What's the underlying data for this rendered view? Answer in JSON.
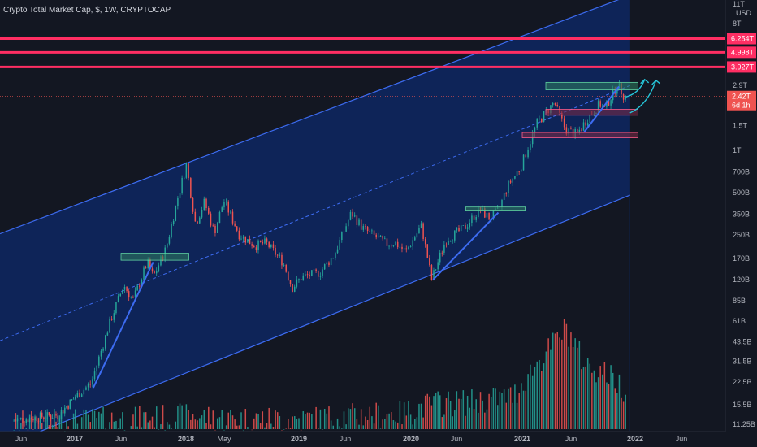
{
  "header": {
    "title": "Crypto Total Market Cap, $, 1W, CRYPTOCAP"
  },
  "currency": "USD",
  "colors": {
    "background": "#131722",
    "channel_fill": "#0d2a6b",
    "channel_line": "#3d6cf2",
    "resistance": "#ff2e63",
    "up": "#26a69a",
    "down": "#ef5350",
    "zone_green": "#2f7d5e",
    "zone_red": "#7d2a45",
    "arrow": "#26c6da"
  },
  "chart_data": {
    "type": "candlestick",
    "title": "Crypto Total Market Cap, $, 1W, CRYPTOCAP",
    "y_scale": "log",
    "y_unit": "USD",
    "y_ticks": [
      "11T",
      "8T",
      "2.9T",
      "1.5T",
      "1T",
      "700B",
      "500B",
      "350B",
      "250B",
      "170B",
      "120B",
      "85B",
      "61B",
      "43.5B",
      "31.5B",
      "22.5B",
      "15.5B",
      "11.25B"
    ],
    "y_tick_values": [
      11000,
      8000,
      2900,
      1500,
      1000,
      700,
      500,
      350,
      250,
      170,
      120,
      85,
      61,
      43.5,
      31.5,
      22.5,
      15.5,
      11.25
    ],
    "x_ticks": [
      "Jun",
      "2017",
      "Jun",
      "2018",
      "May",
      "2019",
      "Jun",
      "2020",
      "Jun",
      "2021",
      "Jun",
      "2022",
      "Jun"
    ],
    "x_tick_dates": [
      "2016-06-01",
      "2017-01-01",
      "2017-06-01",
      "2018-01-01",
      "2018-05-01",
      "2019-01-01",
      "2019-06-01",
      "2020-01-01",
      "2020-06-01",
      "2021-01-01",
      "2021-06-01",
      "2022-01-01",
      "2022-06-01"
    ],
    "resistance_levels": [
      {
        "label": "6.254T",
        "value": 6254
      },
      {
        "label": "4.998T",
        "value": 4998
      },
      {
        "label": "3.927T",
        "value": 3927
      }
    ],
    "last_price": {
      "label": "2.42T",
      "value": 2420,
      "countdown": "6d 1h"
    },
    "price_path": [
      [
        "2016-05-01",
        11.8
      ],
      [
        "2016-08-01",
        12.5
      ],
      [
        "2016-11-01",
        13
      ],
      [
        "2017-01-01",
        17
      ],
      [
        "2017-03-01",
        22
      ],
      [
        "2017-05-01",
        60
      ],
      [
        "2017-06-15",
        110
      ],
      [
        "2017-07-15",
        85
      ],
      [
        "2017-09-01",
        160
      ],
      [
        "2017-09-20",
        125
      ],
      [
        "2017-11-01",
        200
      ],
      [
        "2017-12-10",
        460
      ],
      [
        "2018-01-07",
        790
      ],
      [
        "2018-02-05",
        300
      ],
      [
        "2018-03-05",
        430
      ],
      [
        "2018-04-05",
        260
      ],
      [
        "2018-05-05",
        440
      ],
      [
        "2018-06-25",
        250
      ],
      [
        "2018-08-15",
        210
      ],
      [
        "2018-09-20",
        220
      ],
      [
        "2018-11-15",
        160
      ],
      [
        "2018-12-15",
        105
      ],
      [
        "2019-01-15",
        125
      ],
      [
        "2019-03-15",
        135
      ],
      [
        "2019-05-01",
        180
      ],
      [
        "2019-06-26",
        360
      ],
      [
        "2019-08-01",
        280
      ],
      [
        "2019-09-15",
        240
      ],
      [
        "2019-10-20",
        215
      ],
      [
        "2019-11-15",
        220
      ],
      [
        "2019-12-20",
        190
      ],
      [
        "2020-02-10",
        290
      ],
      [
        "2020-03-15",
        120
      ],
      [
        "2020-05-01",
        230
      ],
      [
        "2020-07-01",
        280
      ],
      [
        "2020-08-20",
        380
      ],
      [
        "2020-09-20",
        330
      ],
      [
        "2020-10-20",
        370
      ],
      [
        "2020-11-20",
        560
      ],
      [
        "2021-01-01",
        760
      ],
      [
        "2021-02-20",
        1550
      ],
      [
        "2021-04-15",
        2200
      ],
      [
        "2021-05-20",
        1400
      ],
      [
        "2021-06-25",
        1300
      ],
      [
        "2021-08-01",
        1700
      ],
      [
        "2021-09-10",
        2150
      ],
      [
        "2021-09-25",
        1950
      ],
      [
        "2021-11-08",
        2950
      ],
      [
        "2021-12-01",
        2420
      ]
    ],
    "volume_path": [
      [
        "2016-05-01",
        11.5
      ],
      [
        "2017-01-01",
        12
      ],
      [
        "2017-09-01",
        12.5
      ],
      [
        "2018-01-15",
        13
      ],
      [
        "2018-06-01",
        12.4
      ],
      [
        "2019-01-01",
        12.2
      ],
      [
        "2019-06-01",
        13
      ],
      [
        "2019-12-01",
        13.5
      ],
      [
        "2020-03-15",
        16
      ],
      [
        "2020-08-01",
        16.5
      ],
      [
        "2020-12-01",
        18
      ],
      [
        "2021-01-15",
        25
      ],
      [
        "2021-05-15",
        55
      ],
      [
        "2021-07-15",
        30
      ],
      [
        "2021-09-15",
        27
      ],
      [
        "2021-12-01",
        20
      ]
    ],
    "channel": {
      "upper": [
        [
          "2016-05-01",
          260
        ],
        [
          "2022-06-15",
          18000
        ]
      ],
      "lower": [
        [
          "2016-05-01",
          7.8
        ],
        [
          "2021-12-15",
          480
        ]
      ],
      "mid": [
        [
          "2016-05-01",
          45
        ],
        [
          "2021-12-15",
          2900
        ]
      ]
    },
    "zones": [
      {
        "kind": "green",
        "x": [
          "2017-06-01",
          "2018-01-10"
        ],
        "y": [
          165,
          185
        ]
      },
      {
        "kind": "green",
        "x": [
          "2020-07-01",
          "2021-01-10"
        ],
        "y": [
          370,
          395
        ]
      },
      {
        "kind": "green",
        "x": [
          "2021-03-15",
          "2022-01-10"
        ],
        "y": [
          2700,
          3050
        ]
      },
      {
        "kind": "red",
        "x": [
          "2021-03-15",
          "2022-01-10"
        ],
        "y": [
          1780,
          1960
        ]
      },
      {
        "kind": "red",
        "x": [
          "2021-01-01",
          "2022-01-10"
        ],
        "y": [
          1230,
          1340
        ]
      }
    ],
    "trendlines": [
      {
        "from": [
          "2017-03-01",
          20
        ],
        "to": [
          "2017-09-15",
          160
        ]
      },
      {
        "from": [
          "2020-03-15",
          120
        ],
        "to": [
          "2020-10-15",
          360
        ]
      },
      {
        "from": [
          "2021-07-15",
          1350
        ],
        "to": [
          "2021-11-08",
          2850
        ]
      }
    ],
    "forecast_arrows": [
      {
        "from": [
          "2021-12-01",
          2400
        ],
        "via": [
          "2022-01-15",
          2550
        ],
        "to": [
          "2022-02-01",
          3200
        ]
      },
      {
        "from": [
          "2021-12-15",
          1850
        ],
        "via": [
          "2022-02-10",
          2100
        ],
        "to": [
          "2022-03-10",
          3150
        ]
      }
    ]
  }
}
